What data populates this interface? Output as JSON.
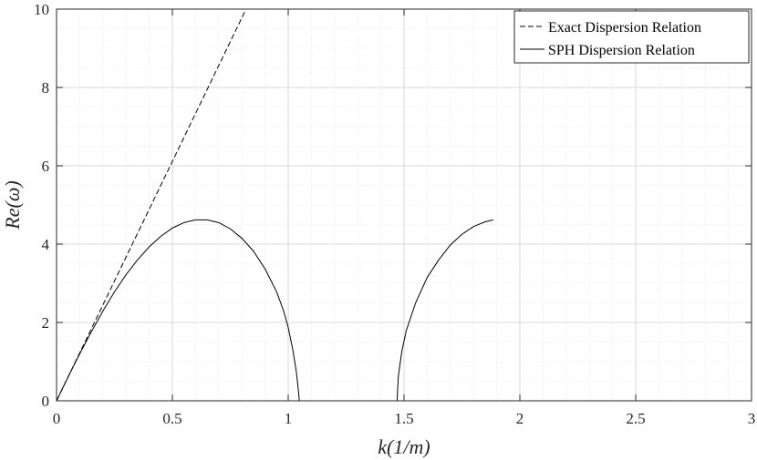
{
  "chart_data": {
    "type": "line",
    "xlabel": "k(1/m)",
    "ylabel": "Re(ω)",
    "xlim": [
      0,
      3
    ],
    "ylim": [
      0,
      10
    ],
    "xticks": [
      0,
      0.5,
      1,
      1.5,
      2,
      2.5,
      3
    ],
    "xtick_labels": [
      "0",
      "0.5",
      "1",
      "1.5",
      "2",
      "2.5",
      "3"
    ],
    "yticks": [
      0,
      2,
      4,
      6,
      8,
      10
    ],
    "ytick_labels": [
      "0",
      "2",
      "4",
      "6",
      "8",
      "10"
    ],
    "grid": true,
    "minor_grid": true,
    "legend_position": "top-right",
    "series": [
      {
        "name": "Exact Dispersion Relation",
        "style": "dashed",
        "color": "#000000",
        "points": [
          [
            0,
            0
          ],
          [
            0.818,
            10
          ]
        ]
      },
      {
        "name": "SPH Dispersion Relation",
        "style": "solid",
        "color": "#000000",
        "segments": [
          [
            [
              0,
              0
            ],
            [
              0.05,
              0.61
            ],
            [
              0.1,
              1.2
            ],
            [
              0.15,
              1.76
            ],
            [
              0.2,
              2.29
            ],
            [
              0.25,
              2.78
            ],
            [
              0.3,
              3.22
            ],
            [
              0.35,
              3.6
            ],
            [
              0.4,
              3.93
            ],
            [
              0.45,
              4.2
            ],
            [
              0.5,
              4.41
            ],
            [
              0.55,
              4.55
            ],
            [
              0.6,
              4.62
            ],
            [
              0.65,
              4.62
            ],
            [
              0.7,
              4.55
            ],
            [
              0.75,
              4.39
            ],
            [
              0.8,
              4.15
            ],
            [
              0.85,
              3.82
            ],
            [
              0.9,
              3.37
            ],
            [
              0.95,
              2.78
            ],
            [
              0.98,
              2.3
            ],
            [
              1.0,
              1.87
            ],
            [
              1.02,
              1.3
            ],
            [
              1.035,
              0.75
            ],
            [
              1.045,
              0.2
            ],
            [
              1.048,
              0
            ]
          ],
          [
            [
              1.048,
              0
            ],
            [
              1.47,
              0
            ]
          ],
          [
            [
              1.47,
              0
            ],
            [
              1.475,
              0.6
            ],
            [
              1.49,
              1.25
            ],
            [
              1.51,
              1.8
            ],
            [
              1.55,
              2.5
            ],
            [
              1.6,
              3.15
            ],
            [
              1.65,
              3.6
            ],
            [
              1.7,
              3.98
            ],
            [
              1.75,
              4.25
            ],
            [
              1.8,
              4.45
            ],
            [
              1.85,
              4.57
            ],
            [
              1.885,
              4.62
            ]
          ]
        ]
      }
    ]
  }
}
